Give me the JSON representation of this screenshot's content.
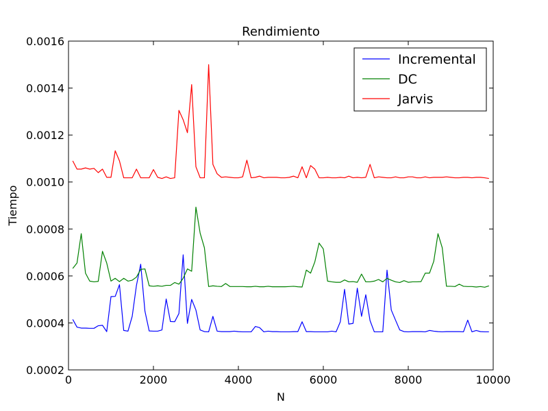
{
  "chart_data": {
    "type": "line",
    "title": "Rendimiento",
    "xlabel": "N",
    "ylabel": "Tiempo",
    "xlim": [
      0,
      10000
    ],
    "ylim": [
      0.0002,
      0.0016
    ],
    "xticks": [
      0,
      2000,
      4000,
      6000,
      8000,
      10000
    ],
    "xtick_labels": [
      "0",
      "2000",
      "4000",
      "6000",
      "8000",
      "10000"
    ],
    "yticks": [
      0.0002,
      0.0004,
      0.0006,
      0.0008,
      0.001,
      0.0012,
      0.0014,
      0.0016
    ],
    "ytick_labels": [
      "0.0002",
      "0.0004",
      "0.0006",
      "0.0008",
      "0.0010",
      "0.0012",
      "0.0014",
      "0.0016"
    ],
    "grid": false,
    "legend_position": "top-right",
    "x": [
      100,
      200,
      300,
      400,
      500,
      600,
      700,
      800,
      900,
      1000,
      1100,
      1200,
      1300,
      1400,
      1500,
      1600,
      1700,
      1800,
      1900,
      2000,
      2100,
      2200,
      2300,
      2400,
      2500,
      2600,
      2700,
      2800,
      2900,
      3000,
      3100,
      3200,
      3300,
      3400,
      3500,
      3600,
      3700,
      3800,
      3900,
      4000,
      4100,
      4200,
      4300,
      4400,
      4500,
      4600,
      4700,
      4800,
      4900,
      5000,
      5100,
      5200,
      5300,
      5400,
      5500,
      5600,
      5700,
      5800,
      5900,
      6000,
      6100,
      6200,
      6300,
      6400,
      6500,
      6600,
      6700,
      6800,
      6900,
      7000,
      7100,
      7200,
      7300,
      7400,
      7500,
      7600,
      7700,
      7800,
      7900,
      8000,
      8100,
      8200,
      8300,
      8400,
      8500,
      8600,
      8700,
      8800,
      8900,
      9000,
      9100,
      9200,
      9300,
      9400,
      9500,
      9600,
      9700,
      9800,
      9900
    ],
    "series": [
      {
        "name": "Incremental",
        "color": "#0000ff",
        "values": [
          0.000415,
          0.000382,
          0.000378,
          0.000378,
          0.000377,
          0.000377,
          0.000388,
          0.00039,
          0.000363,
          0.000512,
          0.000513,
          0.000563,
          0.000368,
          0.000365,
          0.000428,
          0.00056,
          0.00065,
          0.00045,
          0.000366,
          0.000365,
          0.000365,
          0.00037,
          0.000502,
          0.000406,
          0.000405,
          0.00044,
          0.00069,
          0.000398,
          0.0005,
          0.000455,
          0.00037,
          0.000363,
          0.000362,
          0.000428,
          0.000365,
          0.000363,
          0.000363,
          0.000363,
          0.000365,
          0.000363,
          0.000362,
          0.000362,
          0.000362,
          0.000385,
          0.00038,
          0.000362,
          0.000365,
          0.000363,
          0.000363,
          0.000362,
          0.000362,
          0.000362,
          0.000363,
          0.000363,
          0.000405,
          0.000363,
          0.000363,
          0.000362,
          0.000362,
          0.000362,
          0.000362,
          0.000365,
          0.000362,
          0.000405,
          0.000543,
          0.000395,
          0.000398,
          0.000548,
          0.000428,
          0.00052,
          0.00041,
          0.000362,
          0.000362,
          0.000362,
          0.000625,
          0.000455,
          0.000412,
          0.00037,
          0.000363,
          0.000362,
          0.000363,
          0.000363,
          0.000363,
          0.000362,
          0.000368,
          0.000365,
          0.000363,
          0.000362,
          0.000363,
          0.000363,
          0.000363,
          0.000363,
          0.000362,
          0.000412,
          0.000362,
          0.000368,
          0.000363,
          0.000362,
          0.000362
        ]
      },
      {
        "name": "DC",
        "color": "#008000",
        "values": [
          0.000632,
          0.000655,
          0.00078,
          0.000612,
          0.000578,
          0.000575,
          0.000577,
          0.000705,
          0.000655,
          0.000578,
          0.00059,
          0.000576,
          0.00059,
          0.000578,
          0.000582,
          0.000595,
          0.000628,
          0.00063,
          0.000558,
          0.000556,
          0.000558,
          0.000556,
          0.00056,
          0.00056,
          0.000572,
          0.000565,
          0.00059,
          0.00063,
          0.00062,
          0.000893,
          0.000782,
          0.00072,
          0.000555,
          0.000558,
          0.000556,
          0.000555,
          0.000568,
          0.000555,
          0.000555,
          0.000555,
          0.000555,
          0.000554,
          0.000554,
          0.000556,
          0.000554,
          0.000554,
          0.000556,
          0.000554,
          0.000554,
          0.000554,
          0.000554,
          0.000555,
          0.000556,
          0.000554,
          0.000553,
          0.000625,
          0.000612,
          0.00066,
          0.00074,
          0.000715,
          0.000578,
          0.000575,
          0.000573,
          0.000573,
          0.000583,
          0.000575,
          0.000576,
          0.000573,
          0.000608,
          0.000575,
          0.000575,
          0.000578,
          0.000585,
          0.000575,
          0.00059,
          0.000582,
          0.000575,
          0.000572,
          0.00058,
          0.000573,
          0.000575,
          0.000575,
          0.000576,
          0.000612,
          0.000612,
          0.000662,
          0.00078,
          0.00072,
          0.000556,
          0.000556,
          0.000555,
          0.000565,
          0.000556,
          0.000555,
          0.000555,
          0.000553,
          0.000555,
          0.000552,
          0.000558
        ]
      },
      {
        "name": "Jarvis",
        "color": "#ff0000",
        "values": [
          0.00109,
          0.001055,
          0.001055,
          0.00106,
          0.001055,
          0.001058,
          0.00104,
          0.001055,
          0.00102,
          0.00102,
          0.001133,
          0.00109,
          0.001018,
          0.001018,
          0.001018,
          0.001055,
          0.001018,
          0.001018,
          0.001018,
          0.001053,
          0.00102,
          0.001015,
          0.001022,
          0.001015,
          0.001018,
          0.001305,
          0.001265,
          0.00121,
          0.001415,
          0.001065,
          0.001018,
          0.001018,
          0.0015,
          0.001075,
          0.001035,
          0.00102,
          0.001022,
          0.00102,
          0.001018,
          0.001018,
          0.001022,
          0.001093,
          0.001018,
          0.00102,
          0.001025,
          0.001018,
          0.00102,
          0.00102,
          0.00102,
          0.001018,
          0.001018,
          0.00102,
          0.001025,
          0.001018,
          0.001065,
          0.001018,
          0.00107,
          0.001055,
          0.001018,
          0.001018,
          0.00102,
          0.001018,
          0.001018,
          0.00102,
          0.001018,
          0.001025,
          0.001018,
          0.00102,
          0.001018,
          0.00102,
          0.001075,
          0.001018,
          0.001022,
          0.00102,
          0.001018,
          0.001018,
          0.001022,
          0.001018,
          0.001018,
          0.001022,
          0.001022,
          0.001018,
          0.001018,
          0.001022,
          0.001018,
          0.00102,
          0.00102,
          0.00102,
          0.001022,
          0.00102,
          0.001018,
          0.001018,
          0.00102,
          0.00102,
          0.001018,
          0.00102,
          0.00102,
          0.001018,
          0.001015
        ]
      }
    ]
  }
}
